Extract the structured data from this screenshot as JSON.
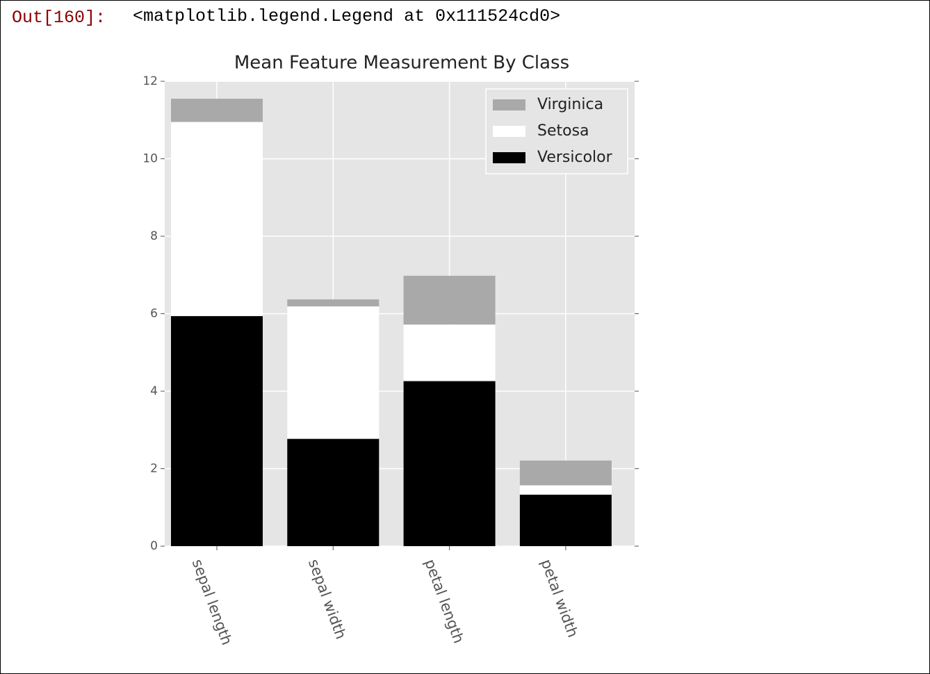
{
  "output_prompt": "Out[160]:",
  "output_text": "<matplotlib.legend.Legend at 0x111524cd0>",
  "chart_data": {
    "type": "stacked_bar",
    "title": "Mean Feature Measurement By Class",
    "categories": [
      "sepal length",
      "sepal width",
      "petal length",
      "petal width"
    ],
    "series": [
      {
        "name": "Versicolor",
        "color": "#000000",
        "values": [
          5.94,
          2.77,
          4.26,
          1.33
        ]
      },
      {
        "name": "Setosa",
        "color": "#ffffff",
        "values": [
          5.01,
          3.42,
          1.46,
          0.24
        ]
      },
      {
        "name": "Virginica",
        "color": "#a9a9a9",
        "values": [
          0.6,
          0.18,
          1.26,
          0.64
        ]
      }
    ],
    "ylim": [
      0,
      12
    ],
    "yticks": [
      0,
      2,
      4,
      6,
      8,
      10,
      12
    ],
    "grid": true,
    "legend": "upper right"
  }
}
